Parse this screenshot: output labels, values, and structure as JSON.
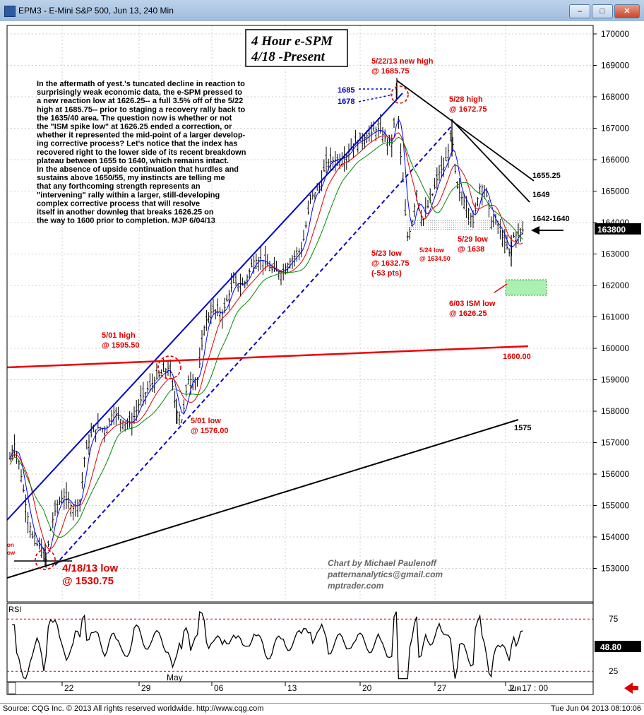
{
  "window": {
    "title": "EPM3 - E-Mini S&P 500, Jun 13, 240 Min",
    "btn_min": "–",
    "btn_max": "□",
    "btn_close": "✕"
  },
  "footer": {
    "source": "Source: CQG Inc. © 2013 All rights reserved worldwide. http://www.cqg.com",
    "timestamp": "Tue Jun 04 2013 08:10:06"
  },
  "chart_data": {
    "type": "candlestick",
    "title": [
      "4 Hour e-SPM",
      "4/18 -Present"
    ],
    "y_axis": {
      "min": 1525,
      "max": 1705,
      "ticks": [
        1530,
        1540,
        1550,
        1560,
        1570,
        1580,
        1590,
        1600,
        1610,
        1620,
        1630,
        1640,
        1650,
        1660,
        1670,
        1680,
        1690,
        1700
      ],
      "tick_labels": [
        "153000",
        "154000",
        "155000",
        "156000",
        "157000",
        "158000",
        "159000",
        "160000",
        "161000",
        "162000",
        "163000",
        "164000",
        "165000",
        "166000",
        "167000",
        "168000",
        "169000",
        "170000"
      ]
    },
    "x_axis": {
      "labels": [
        "22",
        "29",
        "06",
        "13",
        "20",
        "27",
        "Jun"
      ],
      "month_label": "May",
      "last_label": "2 - 17 : 00"
    },
    "last_price": {
      "value": 1638.0,
      "label": "163800"
    },
    "commentary": [
      "In the aftermath of yest.'s tuncated decline in reaction to",
      "surprisingly weak economic data, the e-SPM pressed to",
      "a new reaction low at 1626.25-- a full 3.5% off of the 5/22",
      "high at 1685.75-- prior to staging a recovery rally back to",
      "the 1635/40 area.  The question now is whether or not",
      "the \"ISM spike low\" at 1626.25 ended a correction, or",
      "whether it represented the mid-point of a larger develop-",
      "ing corrective process? Let's notice that the index has",
      "recovered right to the lower side of its recent breakdown",
      "plateau between 1655 to 1640, which remains intact.",
      "In the absence of upside continuation that hurdles and",
      "sustains above 1650/55, my instincts are telling me",
      "that any forthcoming strength represents an",
      "\"intervening\" rally within a larger, still-developing",
      "complex corrective process that will resolve",
      "itself in another downleg that breaks 1626.25 on",
      "the way to 1600 prior to completion. MJP 6/04/13"
    ],
    "annotations": [
      {
        "lines": [
          "5/22/13 new high",
          "@ 1685.75"
        ],
        "color": "#dd0000"
      },
      {
        "lines": [
          "5/28 high",
          "@ 1672.75"
        ],
        "color": "#dd0000"
      },
      {
        "lines": [
          "5/01 high",
          "@ 1595.50"
        ],
        "color": "#dd0000"
      },
      {
        "lines": [
          "5/01 low",
          "@ 1576.00"
        ],
        "color": "#dd0000"
      },
      {
        "lines": [
          "5/23 low",
          "@ 1632.75",
          "(-53 pts)"
        ],
        "color": "#dd0000"
      },
      {
        "lines": [
          "5/24 low",
          "@ 1634.50"
        ],
        "color": "#dd0000"
      },
      {
        "lines": [
          "5/29 low",
          "@ 1638"
        ],
        "color": "#dd0000"
      },
      {
        "lines": [
          "6/03 ISM low",
          "@ 1626.25"
        ],
        "color": "#dd0000"
      },
      {
        "lines": [
          "4/18/13 low",
          "@ 1530.75"
        ],
        "color": "#dd0000"
      },
      {
        "lines": [
          "1685"
        ],
        "color": "#0000cc"
      },
      {
        "lines": [
          "1678"
        ],
        "color": "#0000cc"
      },
      {
        "lines": [
          "1655.25"
        ],
        "color": "#000000"
      },
      {
        "lines": [
          "1649"
        ],
        "color": "#000000"
      },
      {
        "lines": [
          "1642-1640"
        ],
        "color": "#000000"
      },
      {
        "lines": [
          "1600.00"
        ],
        "color": "#dd0000"
      },
      {
        "lines": [
          "1575"
        ],
        "color": "#000000"
      },
      {
        "lines": [
          "on",
          "ow"
        ],
        "color": "#dd0000"
      }
    ],
    "credit": [
      "Chart by Michael Paulenoff",
      "patternanalytics@gmail.com",
      "mptrader.com"
    ],
    "rsi": {
      "label": "RSI",
      "levels": [
        75,
        25
      ],
      "last_label": "48.80"
    },
    "colors": {
      "candles": "#000000",
      "ma_fast": "#0000ff",
      "ma_mid": "#dd0000",
      "ma_slow": "#008800",
      "channel": "#0000cc",
      "trend_red": "#ee0000"
    }
  }
}
